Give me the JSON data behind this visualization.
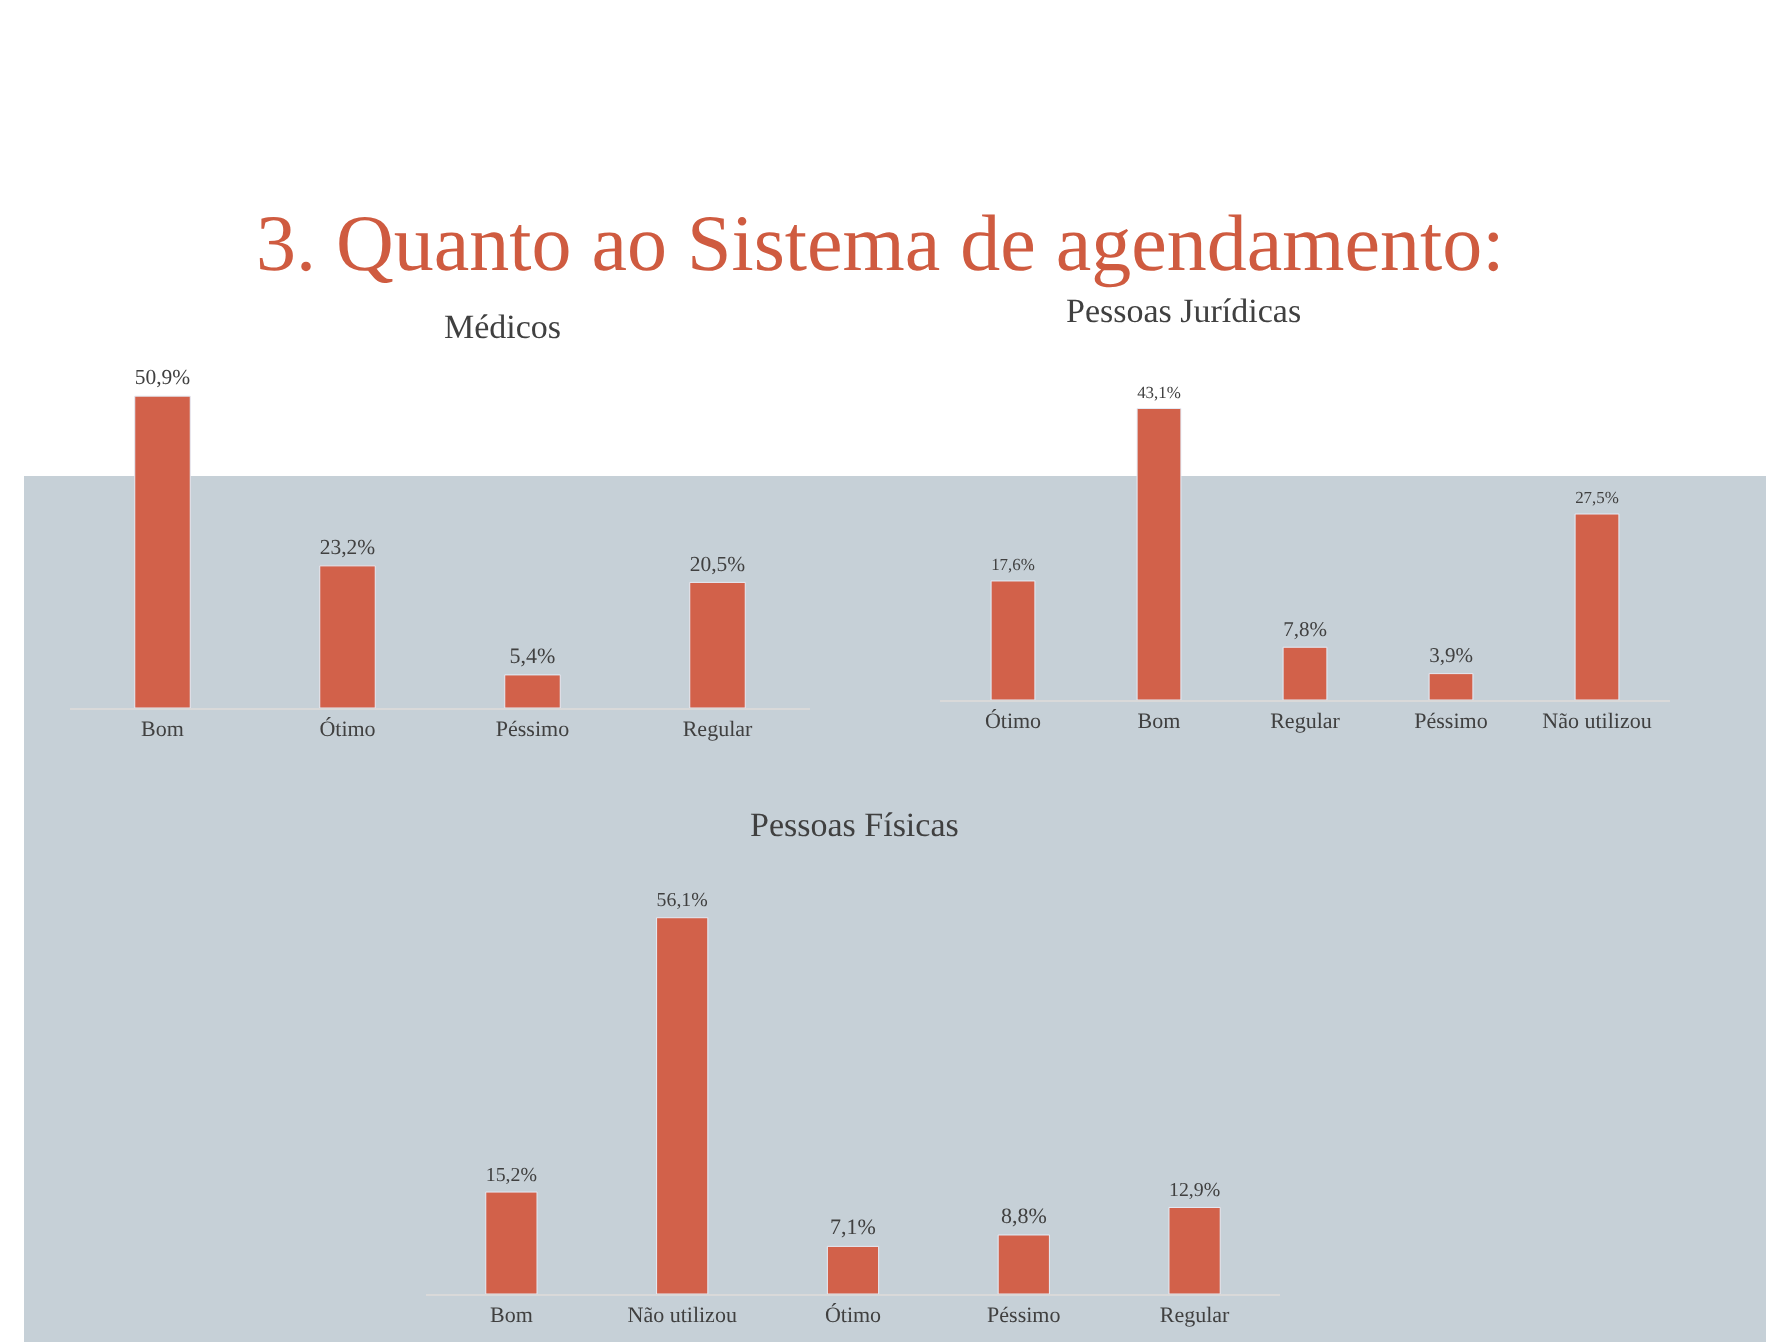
{
  "chart_data": [
    {
      "type": "bar",
      "title": "Médicos",
      "annotations": [
        "3. Quanto ao Sistema de agendamento:"
      ],
      "categories": [
        "Bom",
        "Ótimo",
        "Péssimo",
        "Regular"
      ],
      "values": [
        50.9,
        23.2,
        5.4,
        20.5
      ],
      "value_labels": [
        "50,9%",
        "23,2%",
        "5,4%",
        "20,5%"
      ],
      "color": "#d2614a"
    },
    {
      "type": "bar",
      "title": "Pessoas Jurídicas",
      "categories": [
        "Ótimo",
        "Bom",
        "Regular",
        "Péssimo",
        "Não utilizou"
      ],
      "values": [
        17.6,
        43.1,
        7.8,
        3.9,
        27.5
      ],
      "value_labels": [
        "17,6%",
        "43,1%",
        "7,8%",
        "3,9%",
        "27,5%"
      ],
      "color": "#d2614a"
    },
    {
      "type": "bar",
      "title": "Pessoas Físicas",
      "categories": [
        "Bom",
        "Não utilizou",
        "Ótimo",
        "Péssimo",
        "Regular"
      ],
      "values": [
        15.2,
        56.1,
        7.1,
        8.8,
        12.9
      ],
      "value_labels": [
        "15,2%",
        "56,1%",
        "7,1%",
        "8,8%",
        "12,9%"
      ],
      "color": "#d2614a"
    }
  ]
}
